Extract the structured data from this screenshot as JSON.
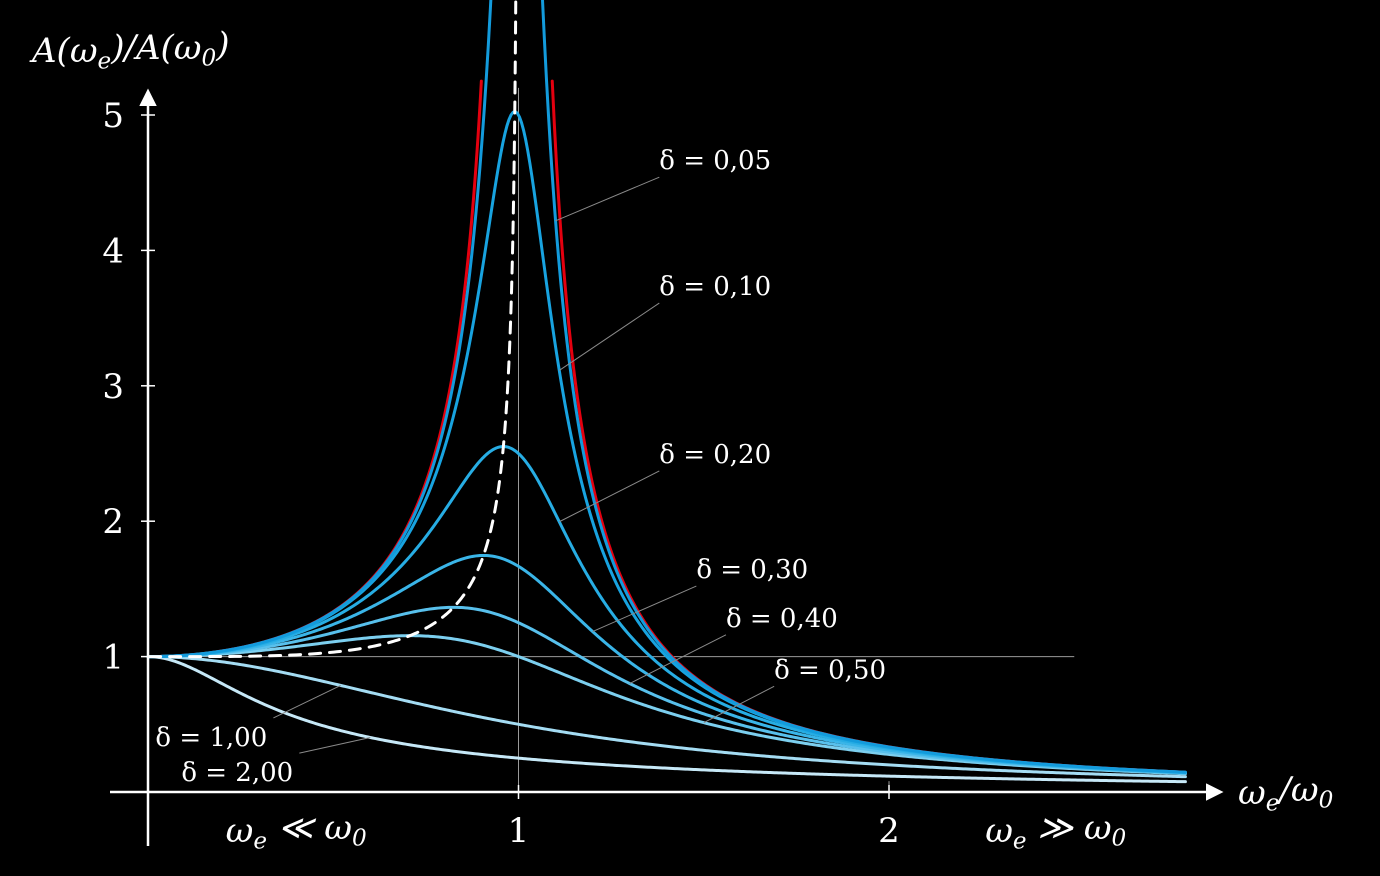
{
  "chart_data": {
    "type": "line",
    "title": "",
    "xlabel": "ω_e/ω_0",
    "ylabel": "A(ω_e)/A(ω_0)",
    "xlim": [
      -0.1,
      2.85
    ],
    "ylim": [
      -0.4,
      5.3
    ],
    "x_ticks": [
      {
        "value": 1,
        "label": "1"
      },
      {
        "value": 2,
        "label": "2"
      }
    ],
    "y_ticks": [
      {
        "value": 1,
        "label": "1"
      },
      {
        "value": 2,
        "label": "2"
      },
      {
        "value": 3,
        "label": "3"
      },
      {
        "value": 4,
        "label": "4"
      },
      {
        "value": 5,
        "label": "5"
      }
    ],
    "regions": [
      {
        "text": "ω_e ≪ ω_0",
        "x": 0.4
      },
      {
        "text": "ω_e ≫ ω_0",
        "x": 2.45
      }
    ],
    "undamped_color": "#e4000f",
    "peak_locus_color": "#ffffff",
    "series": [
      {
        "name": "δ = 0,05",
        "delta": 0.05,
        "color": "#139bdc",
        "label_x": 1.38,
        "label_y": 4.6,
        "point_x": 1.1
      },
      {
        "name": "δ = 0,10",
        "delta": 0.1,
        "color": "#18a3e0",
        "label_x": 1.38,
        "label_y": 3.67,
        "point_x": 1.11
      },
      {
        "name": "δ = 0,20",
        "delta": 0.2,
        "color": "#27ade4",
        "label_x": 1.38,
        "label_y": 2.43,
        "point_x": 1.11
      },
      {
        "name": "δ = 0,30",
        "delta": 0.3,
        "color": "#3ab5e8",
        "label_x": 1.48,
        "label_y": 1.58,
        "point_x": 1.2
      },
      {
        "name": "δ = 0,40",
        "delta": 0.4,
        "color": "#58c0ec",
        "label_x": 1.56,
        "label_y": 1.22,
        "point_x": 1.3
      },
      {
        "name": "δ = 0,50",
        "delta": 0.5,
        "color": "#7ccfef",
        "label_x": 1.69,
        "label_y": 0.84,
        "point_x": 1.5
      },
      {
        "name": "δ = 1,00",
        "delta": 1.0,
        "color": "#a4dcf3",
        "label_x": 0.02,
        "label_y": 0.34,
        "point_x": 0.52
      },
      {
        "name": "δ = 2,00",
        "delta": 2.0,
        "color": "#c6e8f7",
        "label_x": 0.09,
        "label_y": 0.08,
        "point_x": 0.6
      }
    ]
  }
}
